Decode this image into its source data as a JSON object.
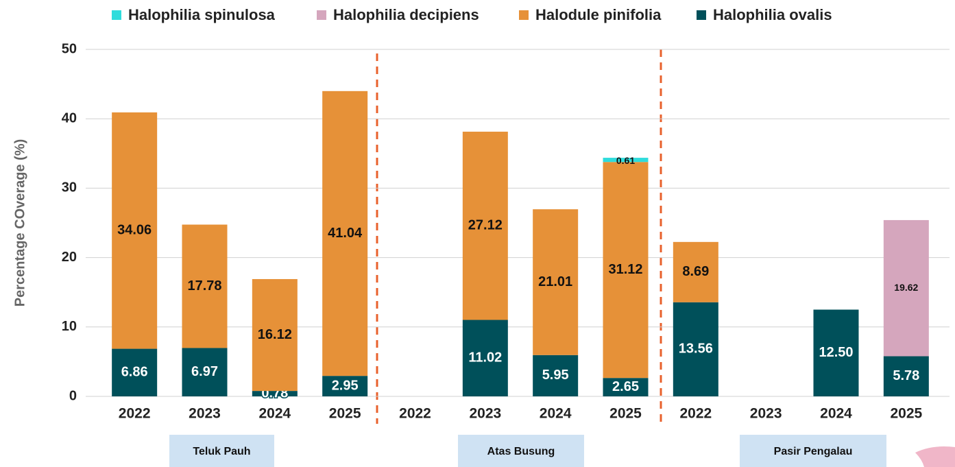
{
  "chart_data": {
    "type": "stacked-bar",
    "ylabel": "Percentage COverage (%)",
    "categories": [
      "2022",
      "2023",
      "2024",
      "2025",
      "2022",
      "2023",
      "2024",
      "2025",
      "2022",
      "2023",
      "2024",
      "2025"
    ],
    "groups": [
      "Teluk Pauh",
      "Atas Busung",
      "Pasir Pengalau"
    ],
    "ylim": [
      0,
      50
    ],
    "yticks": [
      0,
      10,
      20,
      30,
      40,
      50
    ],
    "grid": true,
    "legend": "top",
    "series": [
      {
        "name": "Halophilia spinulosa",
        "color": "#2fdcdc",
        "values": [
          null,
          null,
          null,
          null,
          null,
          null,
          null,
          0.61,
          null,
          null,
          null,
          null
        ],
        "value_labels": [
          null,
          null,
          null,
          null,
          null,
          null,
          null,
          "0.61",
          null,
          null,
          null,
          null
        ]
      },
      {
        "name": "Halophilia decipiens",
        "color": "#d5a6bd",
        "values": [
          null,
          null,
          null,
          null,
          null,
          null,
          null,
          null,
          null,
          null,
          null,
          19.62
        ],
        "value_labels": [
          null,
          null,
          null,
          null,
          null,
          null,
          null,
          null,
          null,
          null,
          null,
          "19.62"
        ]
      },
      {
        "name": "Halodule pinifolia",
        "color": "#e69138",
        "values": [
          34.06,
          17.78,
          16.12,
          41.04,
          null,
          27.12,
          21.01,
          31.12,
          8.69,
          null,
          null,
          null
        ],
        "value_labels": [
          "34.06",
          "17.78",
          "16.12",
          "41.04",
          null,
          "27.12",
          "21.01",
          "31.12",
          "8.69",
          null,
          null,
          null
        ]
      },
      {
        "name": "Halophilia ovalis",
        "color": "#00505a",
        "values": [
          6.86,
          6.97,
          0.78,
          2.95,
          null,
          11.02,
          5.95,
          2.65,
          13.56,
          null,
          12.5,
          5.78
        ],
        "value_labels": [
          "6.86",
          "6.97",
          "0.78",
          "2.95",
          null,
          "11.02",
          "5.95",
          "2.65",
          "13.56",
          null,
          "12.50",
          "5.78"
        ]
      }
    ]
  }
}
